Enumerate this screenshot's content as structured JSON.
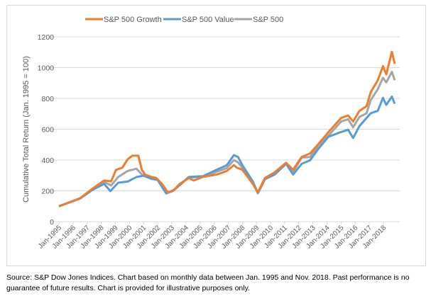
{
  "chart_data": {
    "type": "line",
    "title": "",
    "xlabel": "",
    "ylabel": "Cumulative Total Return (Jan. 1995 = 100)",
    "ylim": [
      0,
      1200
    ],
    "yticks": [
      0,
      200,
      400,
      600,
      800,
      1000,
      1200
    ],
    "xlim": [
      1995.0,
      2018.83
    ],
    "xtick_labels": [
      "Jan-1995",
      "Jan-1996",
      "Jan-1997",
      "Jan-1998",
      "Jan-1999",
      "Jan-2000",
      "Jan-2001",
      "Jan-2002",
      "Jan-2003",
      "Jan-2004",
      "Jan-2005",
      "Jan-2006",
      "Jan-2007",
      "Jan-2008",
      "Jan-2009",
      "Jan-2010",
      "Jan-2011",
      "Jan-2012",
      "Jan-2013",
      "Jan-2014",
      "Jan-2015",
      "Jan-2016",
      "Jan-2017",
      "Jan-2018"
    ],
    "grid": "horizontal",
    "legend_position": "top-center",
    "series": [
      {
        "name": "S&P 500 Growth",
        "color": "#ed7d31",
        "x": [
          1995.0,
          1996.5,
          1997.36,
          1998.2,
          1998.7,
          1999.04,
          1999.5,
          1999.87,
          2000.2,
          2000.63,
          2000.88,
          2001.1,
          2001.55,
          2001.9,
          2002.3,
          2002.72,
          2003.14,
          2003.56,
          2004.2,
          2004.55,
          2005.2,
          2006.2,
          2006.9,
          2007.4,
          2007.6,
          2008.0,
          2008.75,
          2009.1,
          2009.6,
          2010.3,
          2011.1,
          2011.6,
          2012.2,
          2012.8,
          2013.4,
          2014.1,
          2015.0,
          2015.5,
          2015.85,
          2016.3,
          2016.8,
          2017.1,
          2017.6,
          2017.97,
          2018.2,
          2018.6,
          2018.8
        ],
        "values": [
          100,
          152,
          213,
          267,
          262,
          336,
          351,
          405,
          428,
          428,
          336,
          306,
          290,
          283,
          245,
          190,
          205,
          245,
          283,
          267,
          290,
          306,
          329,
          367,
          351,
          337,
          244,
          190,
          283,
          321,
          382,
          337,
          420,
          443,
          505,
          581,
          673,
          689,
          650,
          719,
          750,
          841,
          918,
          1010,
          956,
          1103,
          1025
        ]
      },
      {
        "name": "S&P 500 Value",
        "color": "#5b9bd5",
        "x": [
          1995.0,
          1996.5,
          1997.36,
          1998.2,
          1998.65,
          1999.2,
          1999.87,
          2000.5,
          2001.0,
          2001.5,
          2002.0,
          2002.6,
          2003.1,
          2004.2,
          2005.2,
          2006.0,
          2006.9,
          2007.4,
          2007.7,
          2008.0,
          2008.75,
          2009.1,
          2009.6,
          2010.3,
          2011.1,
          2011.6,
          2012.2,
          2012.8,
          2013.4,
          2014.1,
          2015.0,
          2015.5,
          2015.85,
          2016.3,
          2016.8,
          2017.1,
          2017.6,
          2017.97,
          2018.2,
          2018.6,
          2018.8
        ],
        "values": [
          100,
          150,
          205,
          245,
          198,
          253,
          260,
          290,
          298,
          280,
          270,
          183,
          200,
          290,
          295,
          329,
          367,
          432,
          420,
          367,
          260,
          184,
          275,
          306,
          375,
          306,
          375,
          398,
          474,
          551,
          582,
          597,
          543,
          620,
          673,
          704,
          720,
          804,
          758,
          812,
          766
        ]
      },
      {
        "name": "S&P 500",
        "color": "#a5a5a5",
        "x": [
          1995.0,
          1996.5,
          1997.36,
          1998.2,
          1998.7,
          1999.2,
          1999.87,
          2000.5,
          2000.88,
          2001.1,
          2001.6,
          2002.0,
          2002.6,
          2003.1,
          2004.2,
          2005.2,
          2006.0,
          2006.9,
          2007.4,
          2007.7,
          2008.0,
          2008.75,
          2009.1,
          2009.6,
          2010.3,
          2011.1,
          2011.6,
          2012.2,
          2012.8,
          2013.4,
          2014.1,
          2015.0,
          2015.5,
          2015.85,
          2016.3,
          2016.8,
          2017.1,
          2017.6,
          2017.97,
          2018.2,
          2018.6,
          2018.8
        ],
        "values": [
          100,
          151,
          210,
          257,
          235,
          290,
          329,
          344,
          306,
          300,
          285,
          275,
          186,
          202,
          287,
          292,
          318,
          348,
          400,
          385,
          350,
          252,
          188,
          280,
          314,
          380,
          322,
          416,
          420,
          497,
          558,
          650,
          665,
          612,
          680,
          704,
          789,
          860,
          934,
          904,
          973,
          918
        ]
      }
    ]
  },
  "footnote": {
    "line1": "Source: S&P Dow Jones Indices.  Chart based on monthly data between Jan. 1995 and Nov. 2018.  Past performance is no",
    "line2": "guarantee of future results.  Chart is provided for illustrative purposes only."
  }
}
